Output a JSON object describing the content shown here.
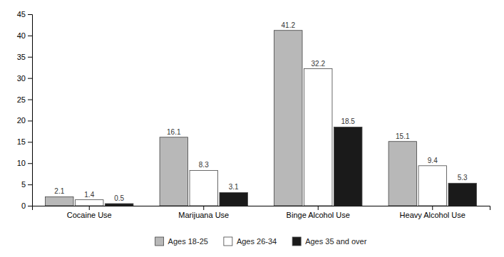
{
  "chart_data": {
    "type": "bar",
    "categories": [
      "Cocaine Use",
      "Marijuana Use",
      "Binge Alcohol Use",
      "Heavy Alcohol Use"
    ],
    "series": [
      {
        "name": "Ages 18-25",
        "color": "#b8b8b8",
        "values": [
          2.1,
          16.1,
          41.2,
          15.1
        ]
      },
      {
        "name": "Ages 26-34",
        "color": "#ffffff",
        "values": [
          1.4,
          8.3,
          32.2,
          9.4
        ]
      },
      {
        "name": "Ages 35 and over",
        "color": "#1a1a1a",
        "values": [
          0.5,
          3.1,
          18.5,
          5.3
        ]
      }
    ],
    "ylim": [
      0,
      45
    ],
    "yticks": [
      0,
      5,
      10,
      15,
      20,
      25,
      30,
      35,
      40,
      45
    ],
    "data_labels": true,
    "grid": false,
    "legend": "bottom"
  }
}
